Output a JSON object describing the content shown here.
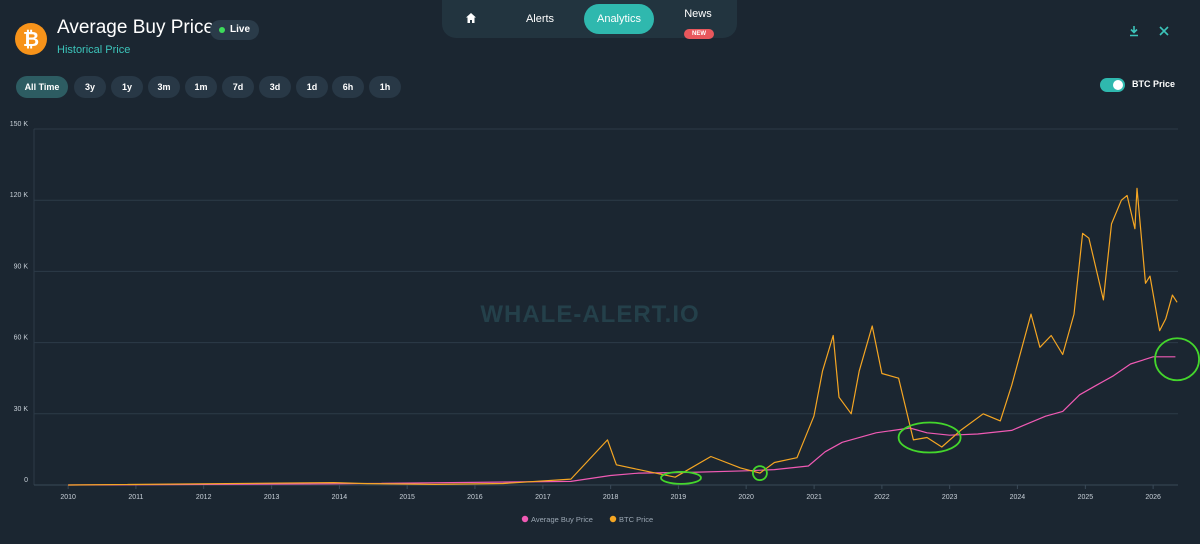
{
  "header": {
    "title": "Average Buy Price",
    "subtitle": "Historical Price",
    "live_label": "Live",
    "coin_symbol": "₿"
  },
  "nav": {
    "alerts": "Alerts",
    "analytics": "Analytics",
    "news": "News",
    "news_badge": "NEW"
  },
  "ranges": [
    "All Time",
    "3y",
    "1y",
    "3m",
    "1m",
    "7d",
    "3d",
    "1d",
    "6h",
    "1h"
  ],
  "active_range": "All Time",
  "btc_toggle": {
    "label": "BTC Price",
    "on": true
  },
  "watermark": "WHALE-ALERT.IO",
  "colors": {
    "background": "#1b2631",
    "accent": "#2fb8ae",
    "btc_price": "#f5a623",
    "avg_buy": "#f05ab4",
    "highlight_circle": "#44d62c"
  },
  "chart_data": {
    "type": "line",
    "x_axis": {
      "type": "date",
      "range": [
        "2009-07-01",
        "2026-05-15"
      ],
      "tick_labels": [
        "2010",
        "2011",
        "2012",
        "2013",
        "2014",
        "2015",
        "2016",
        "2017",
        "2018",
        "2019",
        "2020",
        "2021",
        "2022",
        "2023",
        "2024",
        "2025",
        "2026"
      ]
    },
    "y_axis": {
      "range": [
        0,
        150000
      ],
      "tick_labels": [
        "0",
        "30 K",
        "60 K",
        "90 K",
        "120 K",
        "150 K"
      ],
      "tick_values": [
        0,
        30000,
        60000,
        90000,
        120000,
        150000
      ]
    },
    "grid": true,
    "legend_position": "bottom-center",
    "series": [
      {
        "name": "Average Buy Price",
        "color": "#f05ab4",
        "x": [
          "2010-01-01",
          "2013-12-01",
          "2017-06-01",
          "2017-12-31",
          "2018-06-01",
          "2019-03-01",
          "2020-01-01",
          "2020-06-01",
          "2020-12-01",
          "2021-03-01",
          "2021-06-01",
          "2021-12-01",
          "2022-06-01",
          "2022-09-01",
          "2023-01-01",
          "2023-06-01",
          "2023-12-01",
          "2024-03-01",
          "2024-06-01",
          "2024-09-01",
          "2024-12-01",
          "2025-03-01",
          "2025-06-01",
          "2025-09-01",
          "2026-01-01",
          "2026-05-01"
        ],
        "y": [
          0,
          500,
          1500,
          4000,
          5000,
          5300,
          6000,
          6500,
          8000,
          14000,
          18000,
          22000,
          24000,
          22000,
          21000,
          21500,
          23000,
          26000,
          29000,
          31000,
          38000,
          42000,
          46000,
          51000,
          54000,
          54000
        ]
      },
      {
        "name": "BTC Price",
        "color": "#f5a623",
        "x": [
          "2010-01-01",
          "2013-12-01",
          "2014-06-01",
          "2015-06-01",
          "2016-06-01",
          "2017-06-01",
          "2017-12-15",
          "2018-02-01",
          "2018-06-01",
          "2018-12-15",
          "2019-06-25",
          "2019-12-01",
          "2020-03-15",
          "2020-06-01",
          "2020-10-01",
          "2020-12-31",
          "2021-02-15",
          "2021-04-14",
          "2021-05-15",
          "2021-07-20",
          "2021-09-01",
          "2021-11-10",
          "2022-01-01",
          "2022-04-01",
          "2022-06-20",
          "2022-09-01",
          "2022-11-20",
          "2023-03-01",
          "2023-07-01",
          "2023-10-01",
          "2023-12-01",
          "2024-03-14",
          "2024-05-01",
          "2024-07-01",
          "2024-09-01",
          "2024-11-01",
          "2024-12-17",
          "2025-01-20",
          "2025-04-08",
          "2025-05-22",
          "2025-07-14",
          "2025-08-14",
          "2025-09-25",
          "2025-10-06",
          "2025-11-21",
          "2025-12-15",
          "2026-02-05",
          "2026-03-10",
          "2026-04-15",
          "2026-05-10"
        ],
        "y": [
          0,
          1000,
          600,
          250,
          650,
          2500,
          19000,
          8500,
          6500,
          3300,
          12000,
          7200,
          5000,
          9500,
          11500,
          29000,
          48000,
          63000,
          37000,
          30000,
          48000,
          67000,
          47000,
          45000,
          19000,
          20000,
          16000,
          23000,
          30000,
          27000,
          42000,
          72000,
          58000,
          63000,
          55000,
          72000,
          106000,
          104000,
          78000,
          110000,
          120000,
          122000,
          108000,
          125000,
          85000,
          88000,
          65000,
          70000,
          80000,
          77000
        ]
      }
    ],
    "annotations": [
      {
        "type": "circle",
        "x": "2019-01-15",
        "y": 3000,
        "color": "#44d62c"
      },
      {
        "type": "circle",
        "x": "2020-03-15",
        "y": 5000,
        "color": "#44d62c"
      },
      {
        "type": "circle",
        "x": "2022-09-15",
        "y": 20000,
        "color": "#44d62c"
      },
      {
        "type": "circle",
        "x": "2026-05-10",
        "y": 53000,
        "color": "#44d62c"
      }
    ]
  }
}
